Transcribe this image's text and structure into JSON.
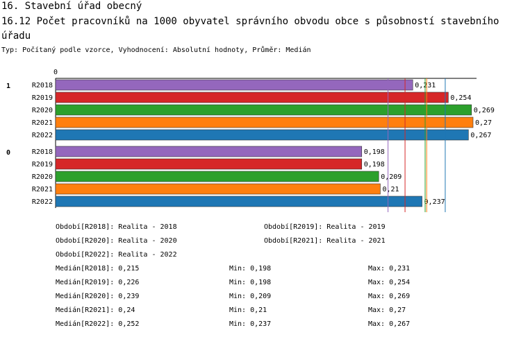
{
  "header": {
    "section": "16. Stavební úřad obecný",
    "title": "16.12 Počet pracovníků na 1000 obyvatel správního obvodu obce s působností stavebního úřadu",
    "subtitle": "Typ: Počítaný podle vzorce, Vyhodnocení: Absolutní hodnoty, Průměr: Medián"
  },
  "chart_data": {
    "type": "bar",
    "orientation": "horizontal",
    "axis_zero_label": "0",
    "xlim": [
      0,
      0.27
    ],
    "groups": [
      {
        "label": "1",
        "bars": [
          {
            "category": "R2018",
            "value": 0.231,
            "label": "0,231"
          },
          {
            "category": "R2019",
            "value": 0.254,
            "label": "0,254"
          },
          {
            "category": "R2020",
            "value": 0.269,
            "label": "0,269"
          },
          {
            "category": "R2021",
            "value": 0.27,
            "label": "0,27"
          },
          {
            "category": "R2022",
            "value": 0.267,
            "label": "0,267"
          }
        ]
      },
      {
        "label": "0",
        "bars": [
          {
            "category": "R2018",
            "value": 0.198,
            "label": "0,198"
          },
          {
            "category": "R2019",
            "value": 0.198,
            "label": "0,198"
          },
          {
            "category": "R2020",
            "value": 0.209,
            "label": "0,209"
          },
          {
            "category": "R2021",
            "value": 0.21,
            "label": "0,21"
          },
          {
            "category": "R2022",
            "value": 0.237,
            "label": "0,237"
          }
        ]
      }
    ],
    "series_colors": {
      "R2018": "#9467bd",
      "R2019": "#d62728",
      "R2020": "#2ca02c",
      "R2021": "#ff7f0e",
      "R2022": "#1f77b4"
    },
    "median_lines": [
      {
        "series": "R2018",
        "value": 0.215
      },
      {
        "series": "R2019",
        "value": 0.226
      },
      {
        "series": "R2020",
        "value": 0.239
      },
      {
        "series": "R2021",
        "value": 0.24
      },
      {
        "series": "R2022",
        "value": 0.252
      }
    ]
  },
  "legend": {
    "periods": [
      "Období[R2018]: Realita - 2018",
      "Období[R2019]: Realita - 2019",
      "Období[R2020]: Realita - 2020",
      "Období[R2021]: Realita - 2021",
      "Období[R2022]: Realita - 2022"
    ],
    "stats": [
      {
        "median": "Medián[R2018]: 0,215",
        "min": "Min: 0,198",
        "max": "Max: 0,231"
      },
      {
        "median": "Medián[R2019]: 0,226",
        "min": "Min: 0,198",
        "max": "Max: 0,254"
      },
      {
        "median": "Medián[R2020]: 0,239",
        "min": "Min: 0,209",
        "max": "Max: 0,269"
      },
      {
        "median": "Medián[R2021]: 0,24",
        "min": "Min: 0,21",
        "max": "Max: 0,27"
      },
      {
        "median": "Medián[R2022]: 0,252",
        "min": "Min: 0,237",
        "max": "Max: 0,267"
      }
    ]
  }
}
